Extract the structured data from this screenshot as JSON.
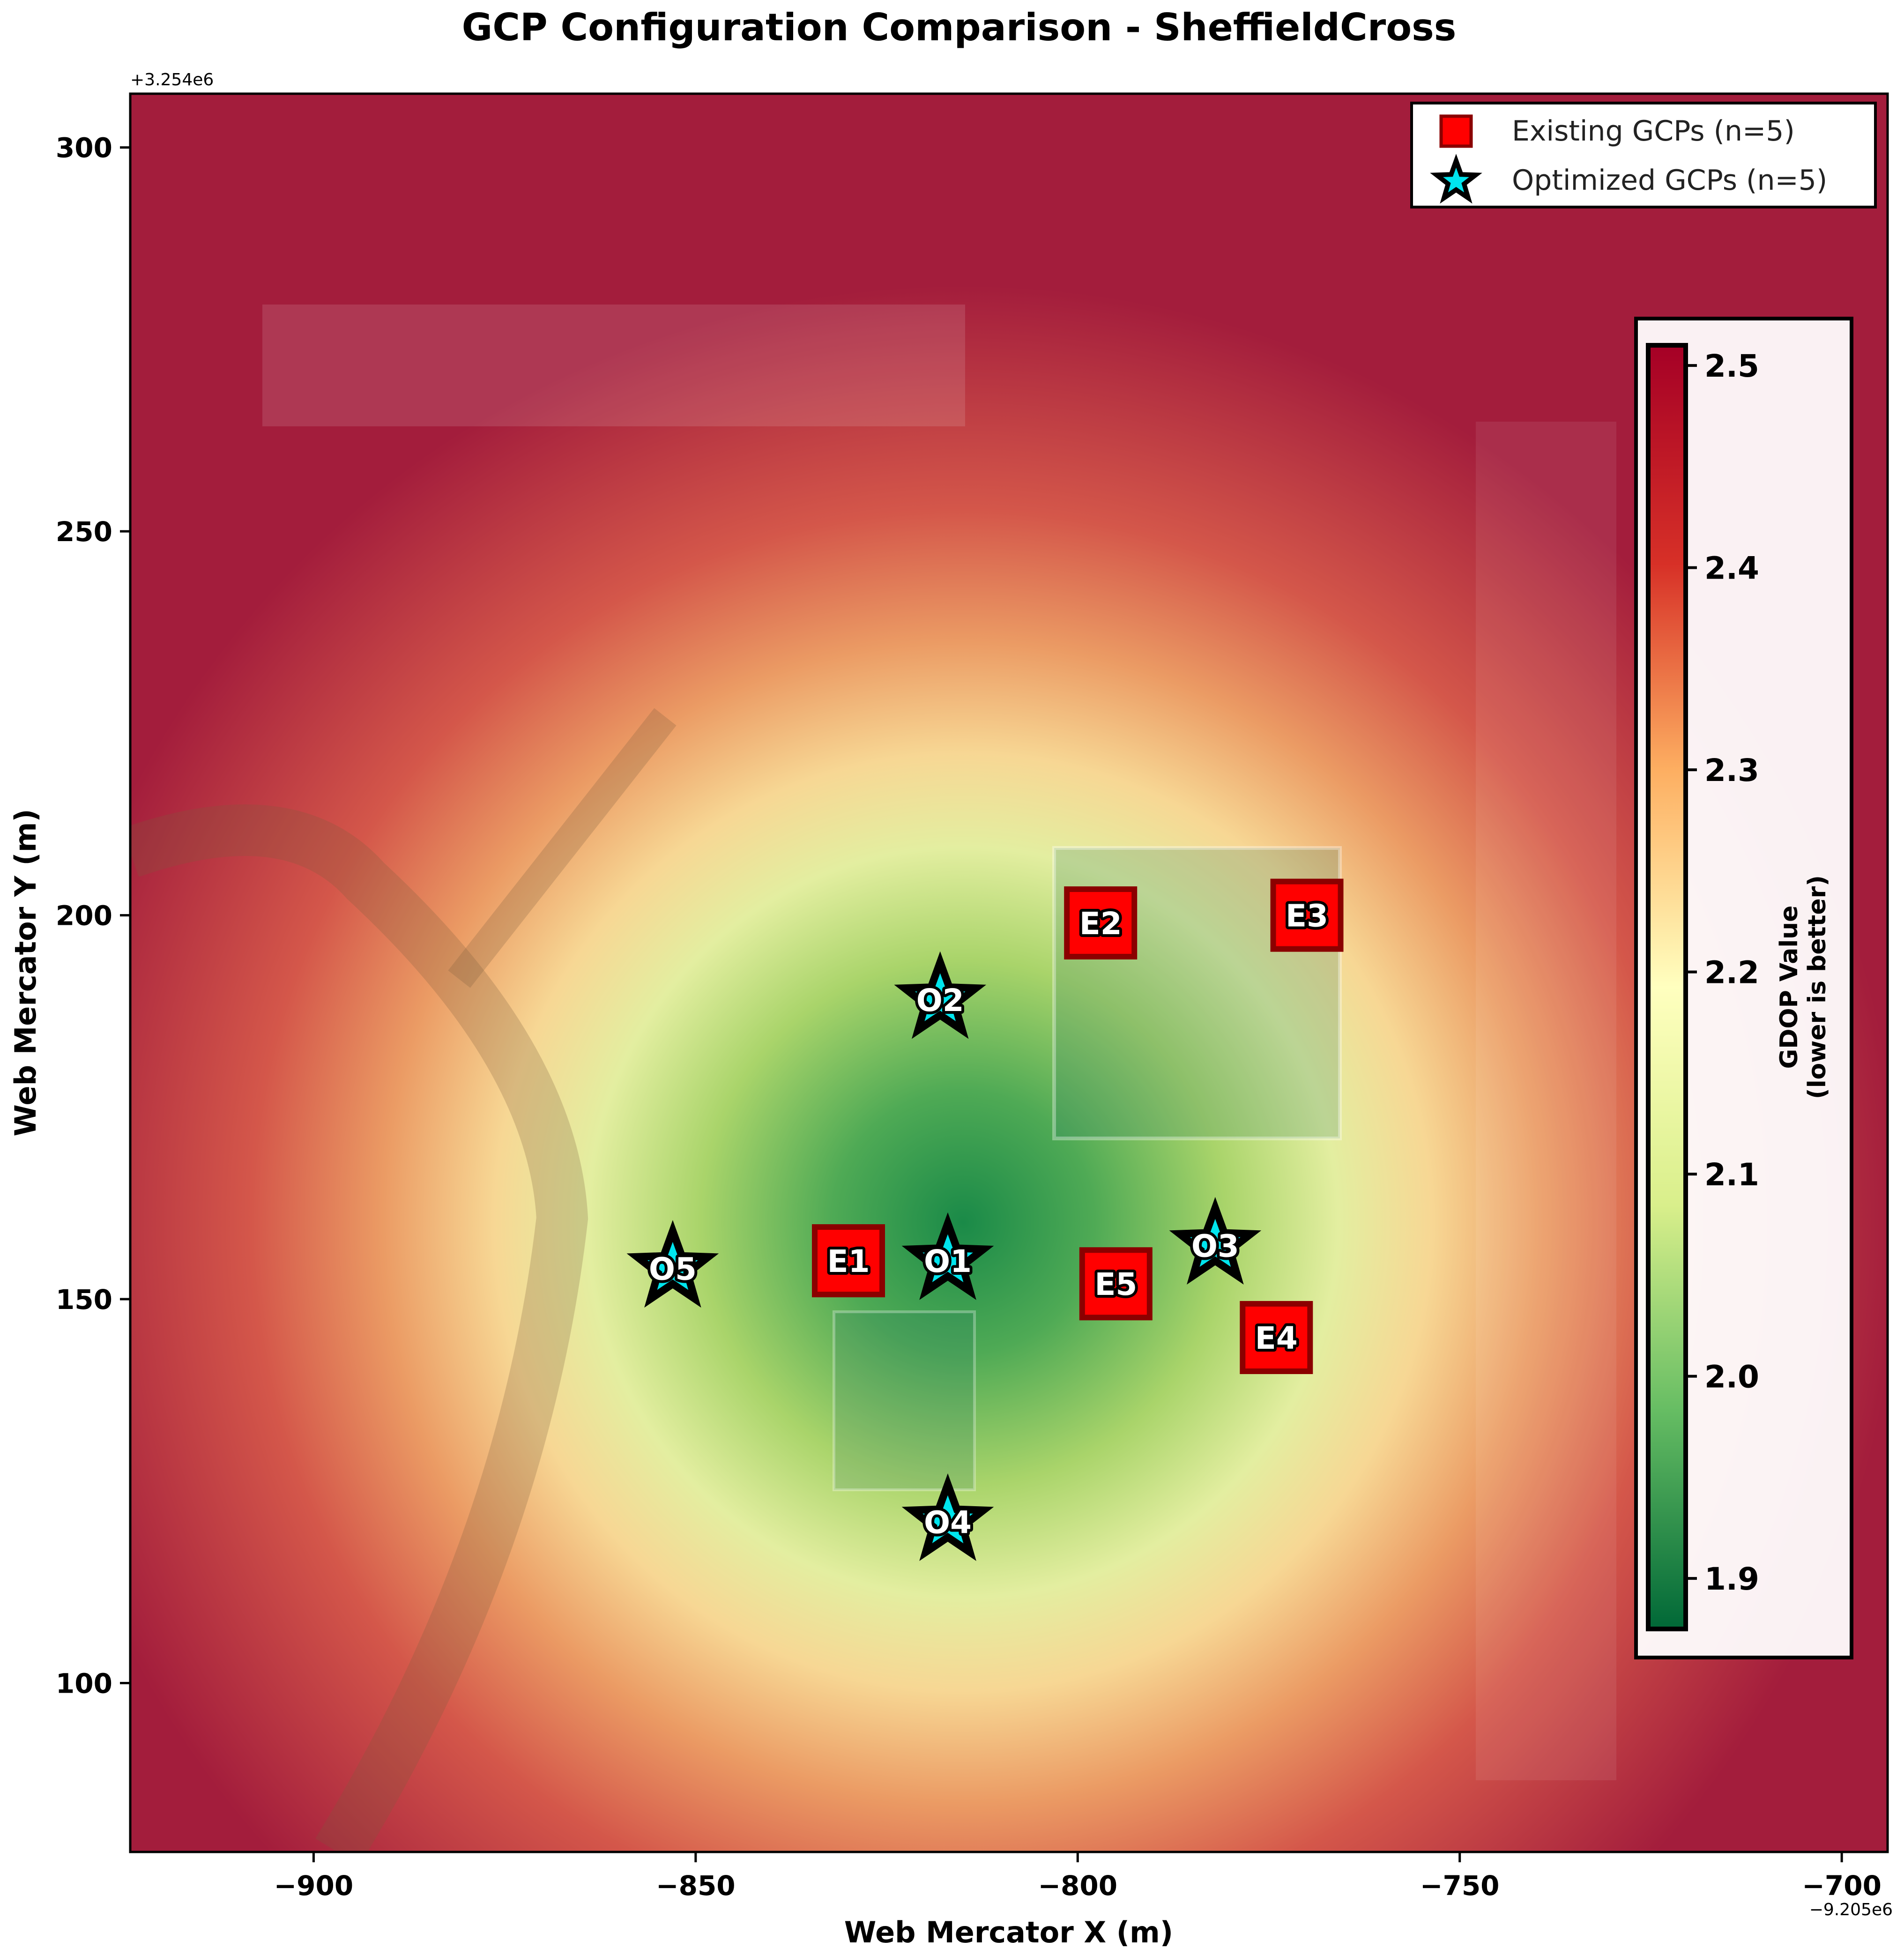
{
  "chart_data": {
    "type": "scatter",
    "title": "GCP Configuration Comparison - SheffieldCross",
    "xlabel": "Web Mercator X (m)",
    "ylabel": "Web Mercator Y (m)",
    "x_offset_label": "−9.205e6",
    "y_offset_label": "+3.254e6",
    "xlim": [
      -924,
      -694
    ],
    "ylim": [
      78,
      307
    ],
    "xticks": [
      -900,
      -850,
      -800,
      -750,
      -700
    ],
    "xtick_labels": [
      "−900",
      "−850",
      "−800",
      "−750",
      "−700"
    ],
    "yticks": [
      100,
      150,
      200,
      250,
      300
    ],
    "ytick_labels": [
      "100",
      "150",
      "200",
      "250",
      "300"
    ],
    "heatmap_center": [
      -815,
      160
    ],
    "series": [
      {
        "name": "Existing GCPs (n=5)",
        "marker": "square",
        "color": "#ff0000",
        "edge_color": "#8b0000",
        "points": [
          {
            "label": "E1",
            "x": -830,
            "y": 155
          },
          {
            "label": "E2",
            "x": -797,
            "y": 199
          },
          {
            "label": "E3",
            "x": -770,
            "y": 200
          },
          {
            "label": "E4",
            "x": -774,
            "y": 145
          },
          {
            "label": "E5",
            "x": -795,
            "y": 152
          }
        ]
      },
      {
        "name": "Optimized GCPs (n=5)",
        "marker": "star",
        "color": "#00e5ee",
        "edge_color": "#000000",
        "points": [
          {
            "label": "O1",
            "x": -817,
            "y": 155
          },
          {
            "label": "O2",
            "x": -818,
            "y": 189
          },
          {
            "label": "O3",
            "x": -782,
            "y": 157
          },
          {
            "label": "O4",
            "x": -817,
            "y": 121
          },
          {
            "label": "O5",
            "x": -853,
            "y": 154
          }
        ]
      }
    ],
    "colorbar": {
      "label_line1": "GDOP Value",
      "label_line2": "(lower is better)",
      "range": [
        1.875,
        2.51
      ],
      "ticks": [
        1.9,
        2.0,
        2.1,
        2.2,
        2.3,
        2.4,
        2.5
      ],
      "tick_labels": [
        "1.9",
        "2.0",
        "2.1",
        "2.2",
        "2.3",
        "2.4",
        "2.5"
      ],
      "colormap": "RdYlGn_r",
      "stops": [
        "#006837",
        "#66bd63",
        "#d9ef8b",
        "#ffffbf",
        "#fdae61",
        "#d73027",
        "#a50026"
      ]
    },
    "grid": false,
    "legend_position": "top-right"
  }
}
